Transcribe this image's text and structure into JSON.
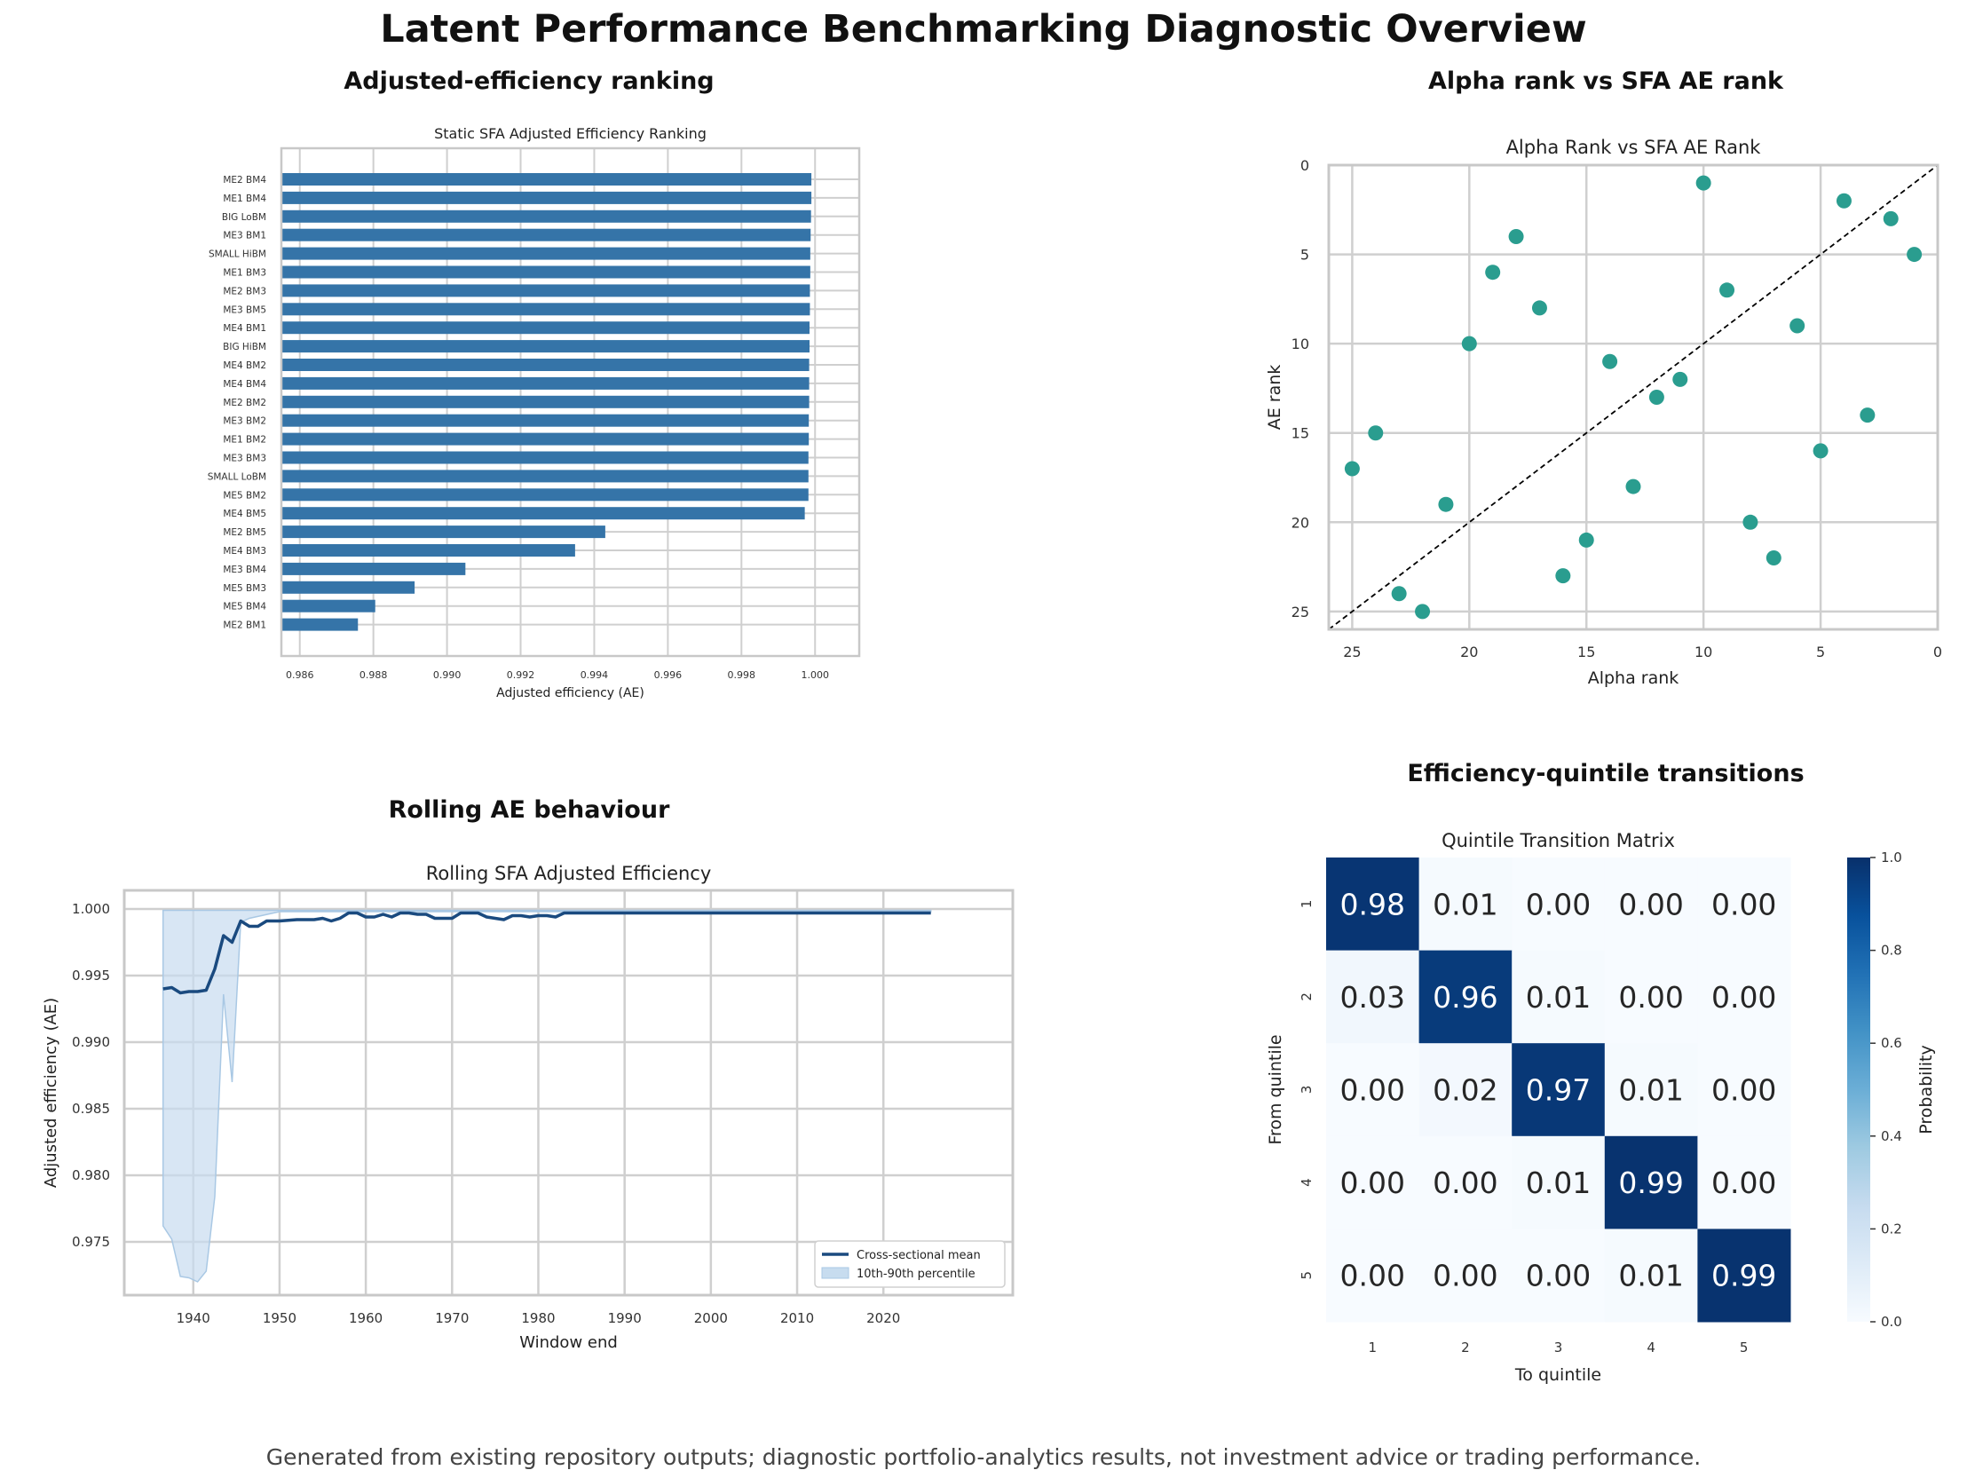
{
  "page": {
    "title": "Latent Performance Benchmarking Diagnostic Overview",
    "footer": "Generated from existing repository outputs; diagnostic portfolio-analytics results, not investment advice or trading performance."
  },
  "panels": {
    "p1": "Adjusted-efficiency ranking",
    "p2": "Alpha rank vs SFA AE rank",
    "p3": "Rolling AE behaviour",
    "p4": "Efficiency-quintile transitions"
  },
  "colors": {
    "bar": "#3574a8",
    "scatter": "#2a9d8f",
    "line": "#1a4a7f",
    "band": "#c7dcef",
    "grid": "#cfcfcf",
    "heatmap_low": "#f7fbff",
    "heatmap_high": "#08306b"
  },
  "chart_data": [
    {
      "type": "bar",
      "orientation": "horizontal",
      "title": "Static SFA Adjusted Efficiency Ranking",
      "xlabel": "Adjusted efficiency (AE)",
      "ylabel": "",
      "xlim": [
        0.9855,
        1.0012
      ],
      "xticks": [
        0.986,
        0.988,
        0.99,
        0.992,
        0.994,
        0.996,
        0.998,
        1.0
      ],
      "xtick_labels": [
        "0.986",
        "0.988",
        "0.990",
        "0.992",
        "0.994",
        "0.996",
        "0.998",
        "1.000"
      ],
      "grid": true,
      "categories": [
        "ME2 BM4",
        "ME1 BM4",
        "BIG LoBM",
        "ME3 BM1",
        "SMALL HiBM",
        "ME1 BM3",
        "ME2 BM3",
        "ME3 BM5",
        "ME4 BM1",
        "BIG HiBM",
        "ME4 BM2",
        "ME4 BM4",
        "ME2 BM2",
        "ME3 BM2",
        "ME1 BM2",
        "ME3 BM3",
        "SMALL LoBM",
        "ME5 BM2",
        "ME4 BM5",
        "ME2 BM5",
        "ME4 BM3",
        "ME3 BM4",
        "ME5 BM3",
        "ME5 BM4",
        "ME2 BM1"
      ],
      "values": [
        0.9999,
        0.9999,
        0.99989,
        0.99988,
        0.99987,
        0.99987,
        0.99986,
        0.99986,
        0.99985,
        0.99985,
        0.99984,
        0.99984,
        0.99984,
        0.99983,
        0.99983,
        0.99982,
        0.99982,
        0.99982,
        0.99972,
        0.9943,
        0.99348,
        0.9905,
        0.98912,
        0.98805,
        0.98758
      ]
    },
    {
      "type": "scatter",
      "title": "Alpha Rank vs SFA AE Rank",
      "xlabel": "Alpha rank",
      "ylabel": "AE rank",
      "xlim": [
        26,
        0
      ],
      "ylim": [
        26,
        0
      ],
      "x_inverted": true,
      "y_inverted": true,
      "xticks": [
        25,
        20,
        15,
        10,
        5,
        0
      ],
      "yticks": [
        0,
        5,
        10,
        15,
        20,
        25
      ],
      "grid": true,
      "reference_line": "diagonal y = x (dashed)",
      "points": [
        {
          "x": 25,
          "y": 17
        },
        {
          "x": 24,
          "y": 15
        },
        {
          "x": 23,
          "y": 24
        },
        {
          "x": 22,
          "y": 25
        },
        {
          "x": 21,
          "y": 19
        },
        {
          "x": 20,
          "y": 10
        },
        {
          "x": 19,
          "y": 6
        },
        {
          "x": 18,
          "y": 4
        },
        {
          "x": 17,
          "y": 8
        },
        {
          "x": 16,
          "y": 23
        },
        {
          "x": 15,
          "y": 21
        },
        {
          "x": 14,
          "y": 11
        },
        {
          "x": 13,
          "y": 18
        },
        {
          "x": 12,
          "y": 13
        },
        {
          "x": 11,
          "y": 12
        },
        {
          "x": 10,
          "y": 1
        },
        {
          "x": 9,
          "y": 7
        },
        {
          "x": 8,
          "y": 20
        },
        {
          "x": 7,
          "y": 22
        },
        {
          "x": 6,
          "y": 9
        },
        {
          "x": 5,
          "y": 16
        },
        {
          "x": 4,
          "y": 2
        },
        {
          "x": 3,
          "y": 14
        },
        {
          "x": 2,
          "y": 3
        },
        {
          "x": 1,
          "y": 5
        }
      ]
    },
    {
      "type": "line",
      "title": "Rolling SFA Adjusted Efficiency",
      "xlabel": "Window end",
      "ylabel": "Adjusted efficiency (AE)",
      "xlim": [
        1932,
        2035
      ],
      "ylim": [
        0.971,
        1.0014
      ],
      "xticks": [
        1940,
        1950,
        1960,
        1970,
        1980,
        1990,
        2000,
        2010,
        2020
      ],
      "yticks": [
        0.975,
        0.98,
        0.985,
        0.99,
        0.995,
        1.0
      ],
      "ytick_labels": [
        "0.975",
        "0.980",
        "0.985",
        "0.990",
        "0.995",
        "1.000"
      ],
      "grid": true,
      "legend_position": "lower-right",
      "series": [
        {
          "name": "Cross-sectional mean",
          "x": [
            1936.5,
            1937.5,
            1938.5,
            1939.5,
            1940.5,
            1941.5,
            1942.5,
            1943.5,
            1944.5,
            1945.5,
            1946.5,
            1947.5,
            1948.5,
            1950,
            1952,
            1954,
            1955,
            1956,
            1957,
            1958,
            1959,
            1960,
            1961,
            1962,
            1963,
            1964,
            1965,
            1966,
            1967,
            1968,
            1970,
            1971,
            1972,
            1973,
            1974,
            1975,
            1976,
            1977,
            1978,
            1979,
            1980,
            1981,
            1982,
            1983,
            1985,
            1990,
            2000,
            2010,
            2020,
            2025.5
          ],
          "y": [
            0.994,
            0.9941,
            0.9937,
            0.9938,
            0.9938,
            0.9939,
            0.9955,
            0.998,
            0.9975,
            0.9991,
            0.9987,
            0.9987,
            0.9991,
            0.9991,
            0.9992,
            0.9992,
            0.9993,
            0.9991,
            0.9993,
            0.9997,
            0.9997,
            0.9994,
            0.9994,
            0.9996,
            0.9994,
            0.9997,
            0.9997,
            0.9996,
            0.9996,
            0.9993,
            0.9993,
            0.9997,
            0.9997,
            0.9997,
            0.9994,
            0.9993,
            0.9992,
            0.9995,
            0.9995,
            0.9994,
            0.9995,
            0.9995,
            0.9994,
            0.9997,
            0.9997,
            0.9997,
            0.9997,
            0.9997,
            0.9997,
            0.9997
          ]
        },
        {
          "name": "10th-90th percentile",
          "x": [
            1936.5,
            1937.5,
            1938.5,
            1939.5,
            1940.5,
            1941.5,
            1942.5,
            1943.5,
            1944.5,
            1945.5,
            1946.5,
            1950,
            2025.5
          ],
          "lower": [
            0.9762,
            0.9752,
            0.9724,
            0.9723,
            0.972,
            0.9728,
            0.9784,
            0.9936,
            0.987,
            0.999,
            0.9993,
            0.9998,
            0.9998
          ],
          "upper": [
            0.9999,
            0.9999,
            0.9999,
            0.9999,
            0.9999,
            0.9999,
            0.9999,
            0.9999,
            0.9999,
            0.9999,
            0.9999,
            0.9999,
            0.9999
          ]
        }
      ]
    },
    {
      "type": "heatmap",
      "title": "Quintile Transition Matrix",
      "xlabel": "To quintile",
      "ylabel": "From quintile",
      "x_categories": [
        "1",
        "2",
        "3",
        "4",
        "5"
      ],
      "y_categories": [
        "1",
        "2",
        "3",
        "4",
        "5"
      ],
      "values": [
        [
          0.98,
          0.01,
          0.0,
          0.0,
          0.0
        ],
        [
          0.03,
          0.96,
          0.01,
          0.0,
          0.0
        ],
        [
          0.0,
          0.02,
          0.97,
          0.01,
          0.0
        ],
        [
          0.0,
          0.0,
          0.01,
          0.99,
          0.0
        ],
        [
          0.0,
          0.0,
          0.0,
          0.01,
          0.99
        ]
      ],
      "value_labels": [
        [
          "0.98",
          "0.01",
          "0.00",
          "0.00",
          "0.00"
        ],
        [
          "0.03",
          "0.96",
          "0.01",
          "0.00",
          "0.00"
        ],
        [
          "0.00",
          "0.02",
          "0.97",
          "0.01",
          "0.00"
        ],
        [
          "0.00",
          "0.00",
          "0.01",
          "0.99",
          "0.00"
        ],
        [
          "0.00",
          "0.00",
          "0.00",
          "0.01",
          "0.99"
        ]
      ],
      "colorbar": {
        "label": "Probability",
        "range": [
          0.0,
          1.0
        ],
        "ticks": [
          "0.0",
          "0.2",
          "0.4",
          "0.6",
          "0.8",
          "1.0"
        ],
        "colormap": "Blues"
      }
    }
  ]
}
